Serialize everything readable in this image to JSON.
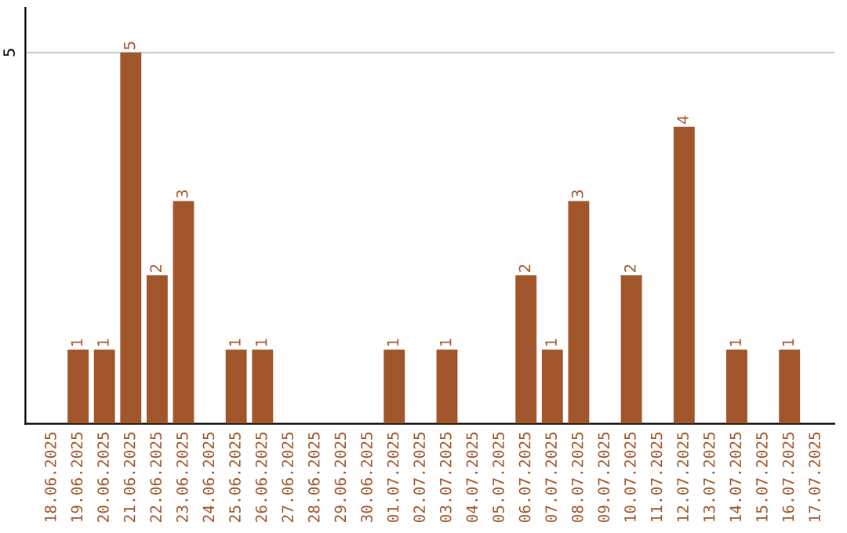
{
  "chart_data": {
    "type": "bar",
    "categories": [
      "18.06.2025",
      "19.06.2025",
      "20.06.2025",
      "21.06.2025",
      "22.06.2025",
      "23.06.2025",
      "24.06.2025",
      "25.06.2025",
      "26.06.2025",
      "27.06.2025",
      "28.06.2025",
      "29.06.2025",
      "30.06.2025",
      "01.07.2025",
      "02.07.2025",
      "03.07.2025",
      "04.07.2025",
      "05.07.2025",
      "06.07.2025",
      "07.07.2025",
      "08.07.2025",
      "09.07.2025",
      "10.07.2025",
      "11.07.2025",
      "12.07.2025",
      "13.07.2025",
      "14.07.2025",
      "15.07.2025",
      "16.07.2025",
      "17.07.2025"
    ],
    "values": [
      0,
      1,
      1,
      5,
      2,
      3,
      0,
      1,
      1,
      0,
      0,
      0,
      0,
      1,
      0,
      1,
      0,
      0,
      2,
      1,
      3,
      0,
      2,
      0,
      4,
      0,
      1,
      0,
      1,
      0
    ],
    "value_labels": [
      null,
      "1",
      "1",
      "5",
      "2",
      "3",
      null,
      "1",
      "1",
      null,
      null,
      null,
      null,
      "1",
      null,
      "1",
      null,
      null,
      "2",
      "1",
      "3",
      null,
      "2",
      null,
      "4",
      null,
      "1",
      null,
      "1",
      null
    ],
    "color": "#a0562a",
    "ylim": [
      0,
      5.6
    ],
    "yticks": [
      5
    ],
    "grid": "y"
  }
}
